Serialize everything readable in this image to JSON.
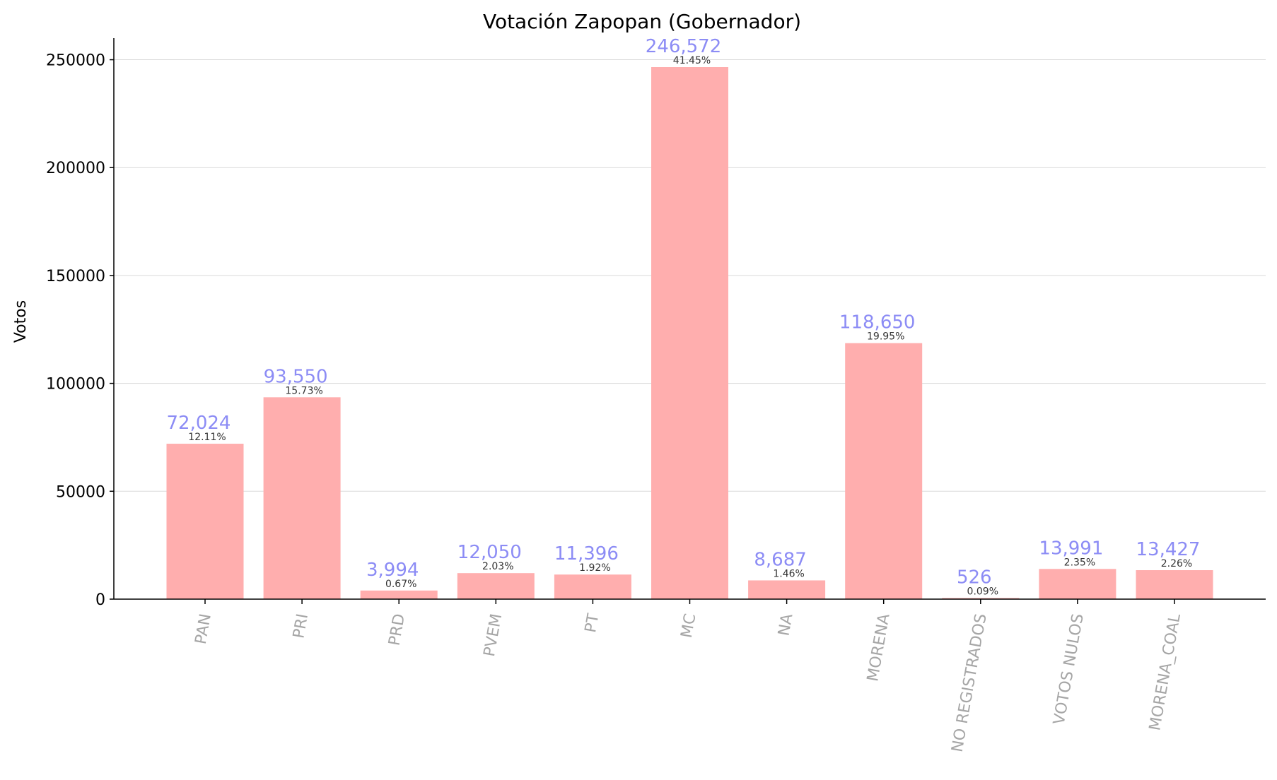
{
  "chart_data": {
    "type": "bar",
    "title": "Votación Zapopan (Gobernador)",
    "xlabel": "",
    "ylabel": "Votos",
    "ylim": [
      0,
      260000
    ],
    "yticks": [
      0,
      50000,
      100000,
      150000,
      200000,
      250000
    ],
    "ytick_labels": [
      "0",
      "50000",
      "100000",
      "150000",
      "200000",
      "250000"
    ],
    "grid": "horizontal",
    "bar_color": "#ffaeae",
    "value_label_color": "#8c8cf5",
    "tick_label_color": "#a6a6a6",
    "categories": [
      "PAN",
      "PRI",
      "PRD",
      "PVEM",
      "PT",
      "MC",
      "NA",
      "MORENA",
      "NO REGISTRADOS",
      "VOTOS NULOS",
      "MORENA_COAL"
    ],
    "values": [
      72024,
      93550,
      3994,
      12050,
      11396,
      246572,
      8687,
      118650,
      526,
      13991,
      13427
    ],
    "value_labels": [
      "72,024",
      "93,550",
      "3,994",
      "12,050",
      "11,396",
      "246,572",
      "8,687",
      "118,650",
      "526",
      "13,991",
      "13,427"
    ],
    "percent_labels": [
      "12.11%",
      "15.73%",
      "0.67%",
      "2.03%",
      "1.92%",
      "41.45%",
      "1.46%",
      "19.95%",
      "0.09%",
      "2.35%",
      "2.26%"
    ]
  }
}
